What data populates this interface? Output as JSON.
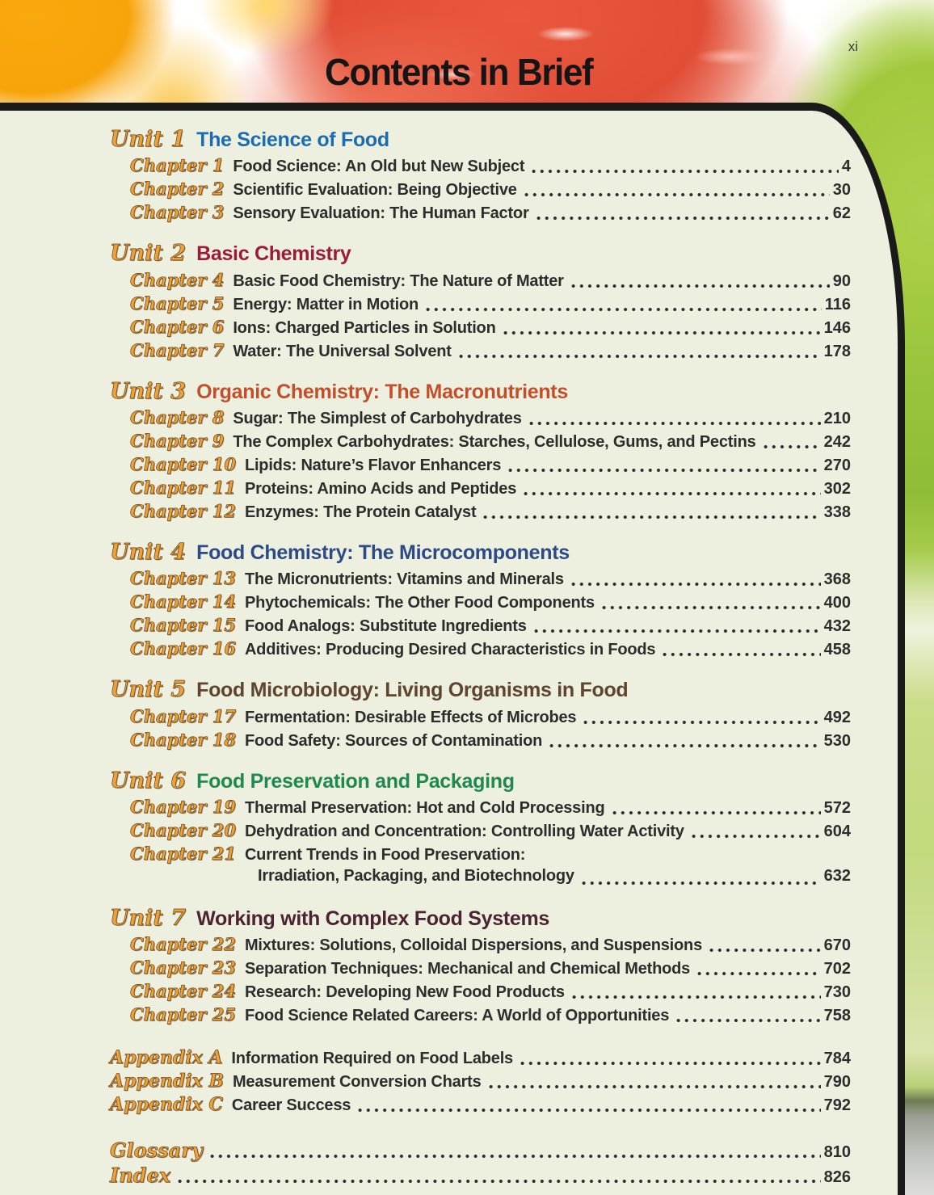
{
  "page": {
    "folio": "xi",
    "title": "Contents in Brief"
  },
  "colors": {
    "panel_background": "#edefdf",
    "border_black": "#1a1a1a",
    "label_gold": "#eaa33c",
    "body_text": "#2d2d2d"
  },
  "toc": {
    "units": [
      {
        "label": "Unit 1",
        "title": "The Science of Food",
        "color": "#1b6cb0",
        "chapters": [
          {
            "label": "Chapter 1",
            "title": "Food Science: An Old but New Subject",
            "page": "4"
          },
          {
            "label": "Chapter 2",
            "title": "Scientific Evaluation: Being Objective",
            "page": "30"
          },
          {
            "label": "Chapter 3",
            "title": "Sensory Evaluation: The Human Factor",
            "page": "62"
          }
        ]
      },
      {
        "label": "Unit 2",
        "title": "Basic Chemistry",
        "color": "#9b1b3a",
        "chapters": [
          {
            "label": "Chapter 4",
            "title": "Basic Food Chemistry: The Nature of Matter",
            "page": "90"
          },
          {
            "label": "Chapter 5",
            "title": "Energy: Matter in Motion",
            "page": "116"
          },
          {
            "label": "Chapter 6",
            "title": "Ions: Charged Particles in Solution",
            "page": "146"
          },
          {
            "label": "Chapter 7",
            "title": "Water: The Universal Solvent",
            "page": "178"
          }
        ]
      },
      {
        "label": "Unit 3",
        "title": "Organic Chemistry: The Macronutrients",
        "color": "#c14f2b",
        "chapters": [
          {
            "label": "Chapter 8",
            "title": "Sugar: The Simplest of Carbohydrates",
            "page": "210"
          },
          {
            "label": "Chapter 9",
            "title": "The Complex Carbohydrates: Starches, Cellulose, Gums, and Pectins",
            "page": "242"
          },
          {
            "label": "Chapter 10",
            "title": "Lipids: Nature’s Flavor Enhancers",
            "page": "270"
          },
          {
            "label": "Chapter 11",
            "title": "Proteins: Amino Acids and Peptides",
            "page": "302"
          },
          {
            "label": "Chapter 12",
            "title": "Enzymes: The Protein Catalyst",
            "page": "338"
          }
        ]
      },
      {
        "label": "Unit 4",
        "title": "Food Chemistry: The Microcomponents",
        "color": "#2c4a86",
        "chapters": [
          {
            "label": "Chapter 13",
            "title": "The Micronutrients: Vitamins and Minerals",
            "page": "368"
          },
          {
            "label": "Chapter 14",
            "title": "Phytochemicals: The Other Food Components",
            "page": "400"
          },
          {
            "label": "Chapter 15",
            "title": "Food Analogs: Substitute Ingredients",
            "page": "432"
          },
          {
            "label": "Chapter 16",
            "title": "Additives: Producing Desired Characteristics in Foods",
            "page": "458"
          }
        ]
      },
      {
        "label": "Unit 5",
        "title": "Food Microbiology: Living Organisms in Food",
        "color": "#5f4430",
        "chapters": [
          {
            "label": "Chapter 17",
            "title": "Fermentation: Desirable Effects of Microbes",
            "page": "492"
          },
          {
            "label": "Chapter 18",
            "title": "Food Safety: Sources of Contamination",
            "page": "530"
          }
        ]
      },
      {
        "label": "Unit 6",
        "title": "Food Preservation and Packaging",
        "color": "#1e8a50",
        "chapters": [
          {
            "label": "Chapter 19",
            "title": "Thermal Preservation: Hot and Cold Processing",
            "page": "572"
          },
          {
            "label": "Chapter 20",
            "title": "Dehydration and Concentration: Controlling Water Activity",
            "page": "604"
          },
          {
            "label": "Chapter 21",
            "title": "Current Trends in Food Preservation:",
            "title2": "Irradiation, Packaging, and Biotechnology",
            "page": "632"
          }
        ]
      },
      {
        "label": "Unit 7",
        "title": "Working with Complex Food Systems",
        "color": "#4b2433",
        "chapters": [
          {
            "label": "Chapter 22",
            "title": "Mixtures: Solutions, Colloidal Dispersions, and Suspensions",
            "page": "670"
          },
          {
            "label": "Chapter 23",
            "title": "Separation Techniques: Mechanical and Chemical Methods",
            "page": "702"
          },
          {
            "label": "Chapter 24",
            "title": "Research: Developing New Food Products",
            "page": "730"
          },
          {
            "label": "Chapter 25",
            "title": "Food Science Related Careers: A World of Opportunities",
            "page": "758"
          }
        ]
      }
    ],
    "appendices": [
      {
        "label": "Appendix A",
        "title": "Information Required on Food Labels",
        "page": "784"
      },
      {
        "label": "Appendix B",
        "title": "Measurement Conversion Charts",
        "page": "790"
      },
      {
        "label": "Appendix C",
        "title": "Career Success",
        "page": "792"
      }
    ],
    "backmatter": [
      {
        "label": "Glossary",
        "page": "810"
      },
      {
        "label": "Index",
        "page": "826"
      }
    ]
  }
}
